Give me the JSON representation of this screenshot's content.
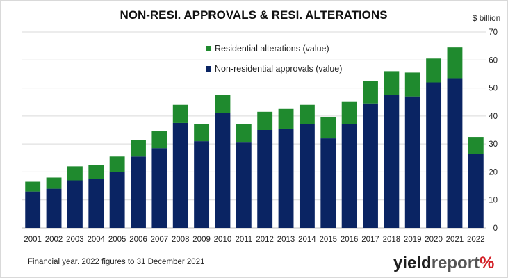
{
  "chart_data": {
    "type": "bar",
    "stacked": true,
    "title": "NON-RESI. APPROVALS & RESI. ALTERATIONS",
    "unit_label": "$ billion",
    "ylim": [
      0,
      70
    ],
    "yticks": [
      0,
      10,
      20,
      30,
      40,
      50,
      60,
      70
    ],
    "y_axis_side": "right",
    "grid": true,
    "legend_position": "top-center",
    "categories": [
      "2001",
      "2002",
      "2003",
      "2004",
      "2005",
      "2006",
      "2007",
      "2008",
      "2009",
      "2010",
      "2011",
      "2012",
      "2013",
      "2014",
      "2015",
      "2016",
      "2017",
      "2018",
      "2019",
      "2020",
      "2021",
      "2022"
    ],
    "series": [
      {
        "name": "Non-residential approvals (value)",
        "color": "#0a2463",
        "values": [
          13.0,
          14.0,
          17.0,
          17.5,
          20.0,
          25.5,
          28.5,
          37.5,
          31.0,
          41.0,
          30.5,
          35.0,
          35.5,
          37.0,
          32.0,
          37.0,
          44.5,
          47.5,
          47.0,
          52.0,
          53.5,
          26.5
        ]
      },
      {
        "name": "Residential alterations (value)",
        "color": "#1f8a2e",
        "values": [
          3.5,
          4.0,
          5.0,
          5.0,
          5.5,
          6.0,
          6.0,
          6.5,
          6.0,
          6.5,
          6.5,
          6.5,
          7.0,
          7.0,
          7.5,
          8.0,
          8.0,
          8.5,
          8.5,
          8.5,
          11.0,
          6.0
        ]
      }
    ]
  },
  "footnote": "Financial year. 2022 figures to 31 December  2021",
  "brand": {
    "part1": "yield",
    "part2": "report",
    "part3": "%"
  }
}
